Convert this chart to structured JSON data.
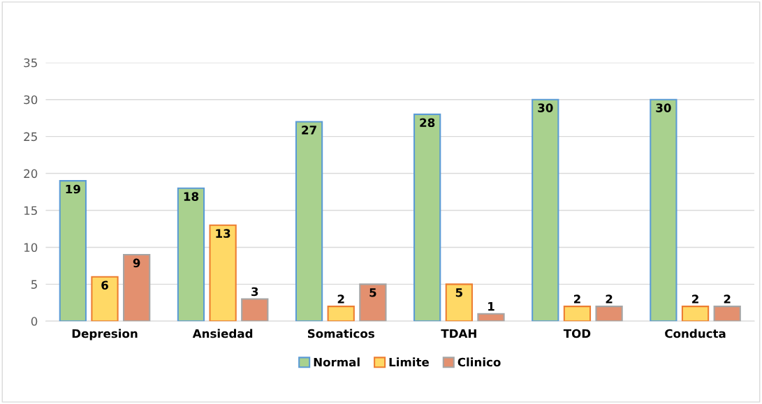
{
  "chart_data": {
    "type": "bar",
    "categories": [
      "Depresion",
      "Ansiedad",
      "Somaticos",
      "TDAH",
      "TOD",
      "Conducta"
    ],
    "series": [
      {
        "name": "Normal",
        "color": "#a9d18e",
        "values": [
          19,
          18,
          27,
          28,
          30,
          30
        ]
      },
      {
        "name": "Limite",
        "color": "#ffd966",
        "values": [
          6,
          13,
          2,
          5,
          2,
          2
        ]
      },
      {
        "name": "Clinico",
        "color": "#e3906f",
        "values": [
          9,
          3,
          5,
          1,
          2,
          2
        ]
      }
    ],
    "ylim": [
      0,
      35
    ],
    "yticks": [
      0,
      5,
      10,
      15,
      20,
      25,
      30,
      35
    ],
    "grid": "y",
    "legend": "bottom",
    "data_labels": true
  }
}
